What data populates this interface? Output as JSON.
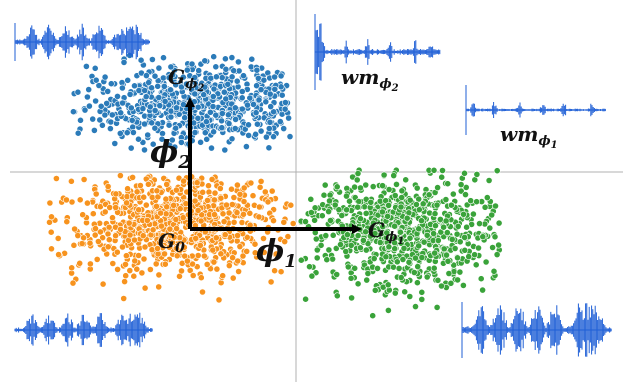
{
  "labels": {
    "g_phi2_main": "G",
    "g_phi2_sub": "ϕ",
    "g_phi2_subsub": "2",
    "g0_main": "G",
    "g0_sub": "0",
    "g_phi1_main": "G",
    "g_phi1_sub": "ϕ",
    "g_phi1_subsub": "1",
    "phi1_main": "ϕ",
    "phi1_sub": "1",
    "phi2_main": "ϕ",
    "phi2_sub": "2",
    "wm_phi2_main": "wm",
    "wm_phi2_sub": "ϕ",
    "wm_phi2_subsub": "2",
    "wm_phi1_main": "wm",
    "wm_phi1_sub": "ϕ",
    "wm_phi1_subsub": "1"
  },
  "colors": {
    "cluster_g0": "#f7931e",
    "cluster_g_phi1": "#3aa33a",
    "cluster_g_phi2": "#2b7bb9",
    "point_edge": "#ffffff",
    "waveform": "#1f5fd6",
    "arrow": "#000000",
    "divider": "#b0b0b0"
  },
  "clusters": [
    {
      "name": "G0",
      "color_key": "cluster_g0",
      "count": 900
    },
    {
      "name": "G_phi1",
      "color_key": "cluster_g_phi1",
      "count": 800
    },
    {
      "name": "G_phi2",
      "color_key": "cluster_g_phi2",
      "count": 800
    }
  ]
}
